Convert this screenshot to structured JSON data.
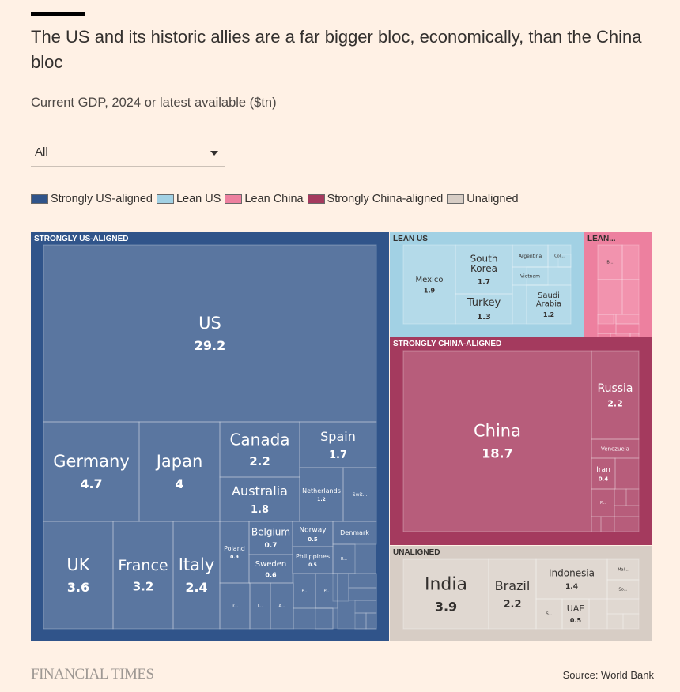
{
  "title": "The US and its historic allies are a far bigger bloc, economically, than the China bloc",
  "subtitle": "Current GDP, 2024 or latest available ($tn)",
  "filter": {
    "selected": "All"
  },
  "legend": [
    {
      "label": "Strongly US-aligned",
      "color": "#30548a"
    },
    {
      "label": "Lean US",
      "color": "#a2d1e4"
    },
    {
      "label": "Lean China",
      "color": "#ed809f"
    },
    {
      "label": "Strongly China-aligned",
      "color": "#a43a5e"
    },
    {
      "label": "Unaligned",
      "color": "#d7cdc5"
    }
  ],
  "footer": {
    "brand": "FINANCIAL TIMES",
    "source": "Source: World Bank"
  },
  "chart_data": {
    "type": "treemap",
    "title": "The US and its historic allies are a far bigger bloc, economically, than the China bloc",
    "unit": "$tn",
    "groups": [
      {
        "name": "STRONGLY US-ALIGNED",
        "color": "#30548a",
        "tile": "#5a76a0",
        "text": "#ffffff",
        "items": [
          {
            "label": "US",
            "value": 29.2
          },
          {
            "label": "Germany",
            "value": 4.7
          },
          {
            "label": "Japan",
            "value": 4
          },
          {
            "label": "UK",
            "value": 3.6
          },
          {
            "label": "France",
            "value": 3.2
          },
          {
            "label": "Italy",
            "value": 2.4
          },
          {
            "label": "Canada",
            "value": 2.2
          },
          {
            "label": "Australia",
            "value": 1.8
          },
          {
            "label": "Spain",
            "value": 1.7
          },
          {
            "label": "Netherlands",
            "value": 1.2
          },
          {
            "label": "Swit...",
            "value": null
          },
          {
            "label": "Poland",
            "value": 0.9
          },
          {
            "label": "Belgium",
            "value": 0.7
          },
          {
            "label": "Sweden",
            "value": 0.6
          },
          {
            "label": "Norway",
            "value": 0.5
          },
          {
            "label": "Philippines",
            "value": 0.5
          },
          {
            "label": "Denmark",
            "value": null
          },
          {
            "label": "Ir...",
            "value": null
          },
          {
            "label": "I...",
            "value": null
          },
          {
            "label": "A...",
            "value": null
          },
          {
            "label": "P...",
            "value": null
          },
          {
            "label": "P...",
            "value": null
          },
          {
            "label": "R...",
            "value": null
          }
        ]
      },
      {
        "name": "LEAN US",
        "color": "#a2d1e4",
        "tile": "#b4dae9",
        "text": "#33302e",
        "items": [
          {
            "label": "Mexico",
            "value": 1.9
          },
          {
            "label": "South Korea",
            "value": 1.7
          },
          {
            "label": "Turkey",
            "value": 1.3
          },
          {
            "label": "Saudi Arabia",
            "value": 1.2
          },
          {
            "label": "Argentina",
            "value": null
          },
          {
            "label": "Vietnam",
            "value": null
          },
          {
            "label": "Col...",
            "value": null
          }
        ]
      },
      {
        "name": "LEAN...",
        "color": "#ed809f",
        "tile": "#f293ae",
        "text": "#33302e",
        "items": [
          {
            "label": "B...",
            "value": null
          }
        ]
      },
      {
        "name": "STRONGLY CHINA-ALIGNED",
        "color": "#a43a5e",
        "tile": "#b75d7b",
        "text": "#ffffff",
        "items": [
          {
            "label": "China",
            "value": 18.7
          },
          {
            "label": "Russia",
            "value": 2.2
          },
          {
            "label": "Venezuela",
            "value": null
          },
          {
            "label": "Iran",
            "value": 0.4
          },
          {
            "label": "P...",
            "value": null
          }
        ]
      },
      {
        "name": "UNALIGNED",
        "color": "#d7cdc5",
        "tile": "#e0d8d1",
        "text": "#33302e",
        "items": [
          {
            "label": "India",
            "value": 3.9
          },
          {
            "label": "Brazil",
            "value": 2.2
          },
          {
            "label": "Indonesia",
            "value": 1.4
          },
          {
            "label": "UAE",
            "value": 0.5
          },
          {
            "label": "S...",
            "value": null
          },
          {
            "label": "Mal...",
            "value": null
          },
          {
            "label": "So...",
            "value": null
          }
        ]
      }
    ]
  }
}
